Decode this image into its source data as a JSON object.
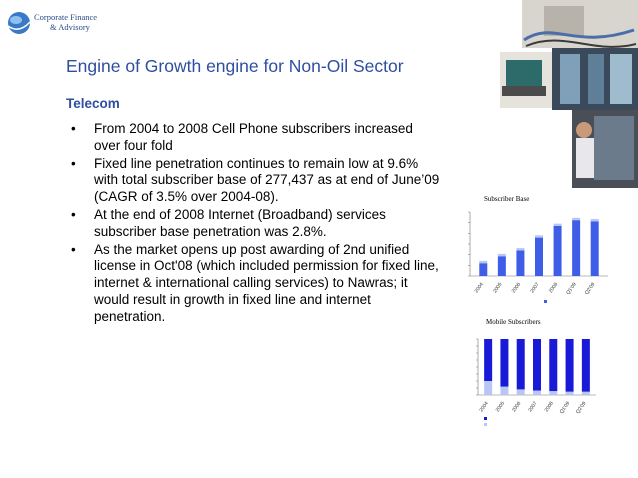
{
  "logo": {
    "line1": "Corporate Finance",
    "line2": "& Advisory",
    "icon": "globe-icon"
  },
  "title": "Engine of Growth engine for Non-Oil Sector",
  "subtitle": "Telecom",
  "bullets": [
    "From 2004 to 2008 Cell Phone subscribers increased over four fold",
    "Fixed line penetration continues to remain low at 9.6% with total subscriber base of 277,437 as at end of June’09 (CAGR of 3.5% over 2004-08).",
    "At the end of 2008 Internet (Broadband) services subscriber base penetration was 2.8%.",
    "As the market opens up post awarding of 2nd unified license in Oct'08 (which included permission for fixed line, internet & international calling services) to Nawras; it would result in growth in fixed line and internet penetration."
  ],
  "photos": [
    "network-cables-photo",
    "server-room-photo",
    "laptop-photo",
    "technician-photo"
  ],
  "chart_data": [
    {
      "type": "bar",
      "title": "Subscriber Base",
      "categories": [
        "2004",
        "2005",
        "2006",
        "2007",
        "2008",
        "Q1'09",
        "Q2'09"
      ],
      "series": [
        {
          "color": "#3f5ee8",
          "values": [
            11,
            17,
            22,
            33,
            43,
            48,
            47
          ]
        },
        {
          "color": "#b9c6f3",
          "values": [
            2,
            2,
            2,
            2,
            2,
            2,
            2
          ]
        }
      ],
      "ylim": [
        0,
        55
      ]
    },
    {
      "type": "bar",
      "title": "Mobile Subscribers",
      "categories": [
        "2004",
        "2005",
        "2006",
        "2007",
        "2008",
        "Q1'09",
        "Q2'09"
      ],
      "series": [
        {
          "color": "#b9c6f3",
          "values": [
            25,
            15,
            10,
            8,
            7,
            6,
            6
          ]
        },
        {
          "color": "#1919d8",
          "values": [
            75,
            85,
            90,
            92,
            93,
            94,
            94
          ]
        }
      ],
      "ylim": [
        0,
        100
      ]
    }
  ]
}
